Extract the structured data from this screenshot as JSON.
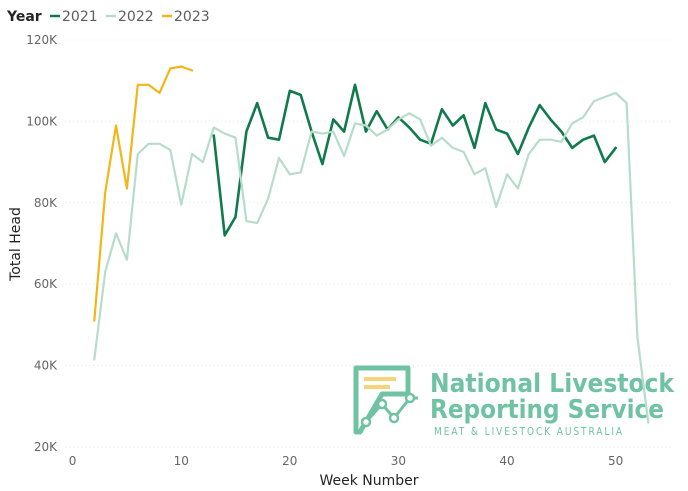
{
  "chart_data": {
    "type": "line",
    "title": "",
    "xlabel": "Week Number",
    "ylabel": "Total Head",
    "xlim": [
      -3,
      55
    ],
    "ylim": [
      20000,
      120000
    ],
    "x_ticks": [
      0,
      10,
      20,
      30,
      40,
      50
    ],
    "x_tick_labels": [
      "0",
      "10",
      "20",
      "30",
      "40",
      "50"
    ],
    "y_ticks": [
      20000,
      40000,
      60000,
      80000,
      100000,
      120000
    ],
    "y_tick_labels": [
      "20K",
      "40K",
      "60K",
      "80K",
      "100K",
      "120K"
    ],
    "grid": true,
    "legend": {
      "title": "Year",
      "placement": "top-left"
    },
    "series": [
      {
        "name": "2021",
        "color": "#117a4c",
        "x": [
          13,
          14,
          15,
          16,
          17,
          18,
          19,
          20,
          21,
          22,
          23,
          24,
          25,
          26,
          27,
          28,
          29,
          30,
          31,
          32,
          33,
          34,
          35,
          36,
          37,
          38,
          39,
          40,
          41,
          42,
          43,
          44,
          45,
          46,
          47,
          48,
          49,
          50
        ],
        "values": [
          96500,
          72000,
          76500,
          97500,
          104500,
          96000,
          95500,
          107500,
          106500,
          97500,
          89500,
          100500,
          97500,
          109000,
          97500,
          102500,
          98000,
          101000,
          98500,
          95500,
          94500,
          103000,
          99000,
          101500,
          93500,
          104500,
          98000,
          97000,
          92000,
          98500,
          104000,
          100500,
          97500,
          93500,
          95500,
          96500,
          90000,
          93500
        ]
      },
      {
        "name": "2022",
        "color": "#b7dccb",
        "x": [
          2,
          3,
          4,
          5,
          6,
          7,
          8,
          9,
          10,
          11,
          12,
          13,
          14,
          15,
          16,
          17,
          18,
          19,
          20,
          21,
          22,
          23,
          24,
          25,
          26,
          27,
          28,
          29,
          30,
          31,
          32,
          33,
          34,
          35,
          36,
          37,
          38,
          39,
          40,
          41,
          42,
          43,
          44,
          45,
          46,
          47,
          48,
          49,
          50,
          51,
          52,
          53
        ],
        "values": [
          41500,
          63000,
          72500,
          66000,
          92000,
          94500,
          94500,
          93000,
          79500,
          92000,
          90000,
          98500,
          97000,
          96000,
          75500,
          75000,
          81000,
          91000,
          87000,
          87500,
          97500,
          97000,
          97500,
          91500,
          99500,
          99000,
          96500,
          98000,
          100500,
          102000,
          100500,
          94000,
          96000,
          93500,
          92500,
          87000,
          88500,
          79000,
          87000,
          83500,
          92000,
          95500,
          95500,
          95000,
          99500,
          101000,
          105000,
          106000,
          107000,
          104500,
          47000,
          26000
        ]
      },
      {
        "name": "2023",
        "color": "#f2b619",
        "x": [
          2,
          3,
          4,
          5,
          6,
          7,
          8,
          9,
          10,
          11
        ],
        "values": [
          51000,
          82500,
          99000,
          83500,
          109000,
          109000,
          107000,
          113000,
          113500,
          112500
        ]
      }
    ]
  },
  "watermark": {
    "line1": "National Livestock",
    "line2": "Reporting Service",
    "subtitle": "MEAT & LIVESTOCK AUSTRALIA",
    "color": "#6fc3a2"
  }
}
